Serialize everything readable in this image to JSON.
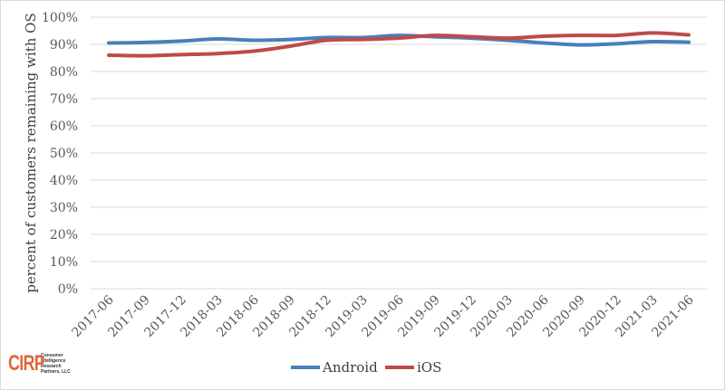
{
  "chart_data": {
    "type": "line",
    "title": "",
    "xlabel": "",
    "ylabel": "percent of customers remaining with OS",
    "ylim": [
      0,
      100
    ],
    "y_ticks": [
      "0%",
      "10%",
      "20%",
      "30%",
      "40%",
      "50%",
      "60%",
      "70%",
      "80%",
      "90%",
      "100%"
    ],
    "grid": true,
    "legend_position": "bottom",
    "categories": [
      "2017-06",
      "2017-09",
      "2017-12",
      "2018-03",
      "2018-06",
      "2018-09",
      "2018-12",
      "2019-03",
      "2019-06",
      "2019-09",
      "2019-12",
      "2020-03",
      "2020-06",
      "2020-09",
      "2020-12",
      "2021-03",
      "2021-06"
    ],
    "series": [
      {
        "name": "Android",
        "color": "#4a7ebb",
        "values": [
          90.5,
          90.7,
          91.2,
          92.0,
          91.5,
          91.8,
          92.5,
          92.5,
          93.3,
          92.8,
          92.3,
          91.5,
          90.5,
          89.8,
          90.2,
          91.0,
          90.8
        ]
      },
      {
        "name": "iOS",
        "color": "#be4b48",
        "values": [
          86.0,
          85.8,
          86.2,
          86.6,
          87.5,
          89.3,
          91.5,
          91.8,
          92.3,
          93.3,
          92.8,
          92.3,
          93.0,
          93.3,
          93.3,
          94.2,
          93.5
        ]
      }
    ]
  },
  "legend": {
    "items": [
      {
        "label": "Android",
        "color": "#4a7ebb"
      },
      {
        "label": "iOS",
        "color": "#be4b48"
      }
    ]
  },
  "logo": {
    "mark": "CIRP",
    "lines": [
      "Consumer",
      "Intelligence",
      "Research",
      "Partners, LLC"
    ]
  }
}
